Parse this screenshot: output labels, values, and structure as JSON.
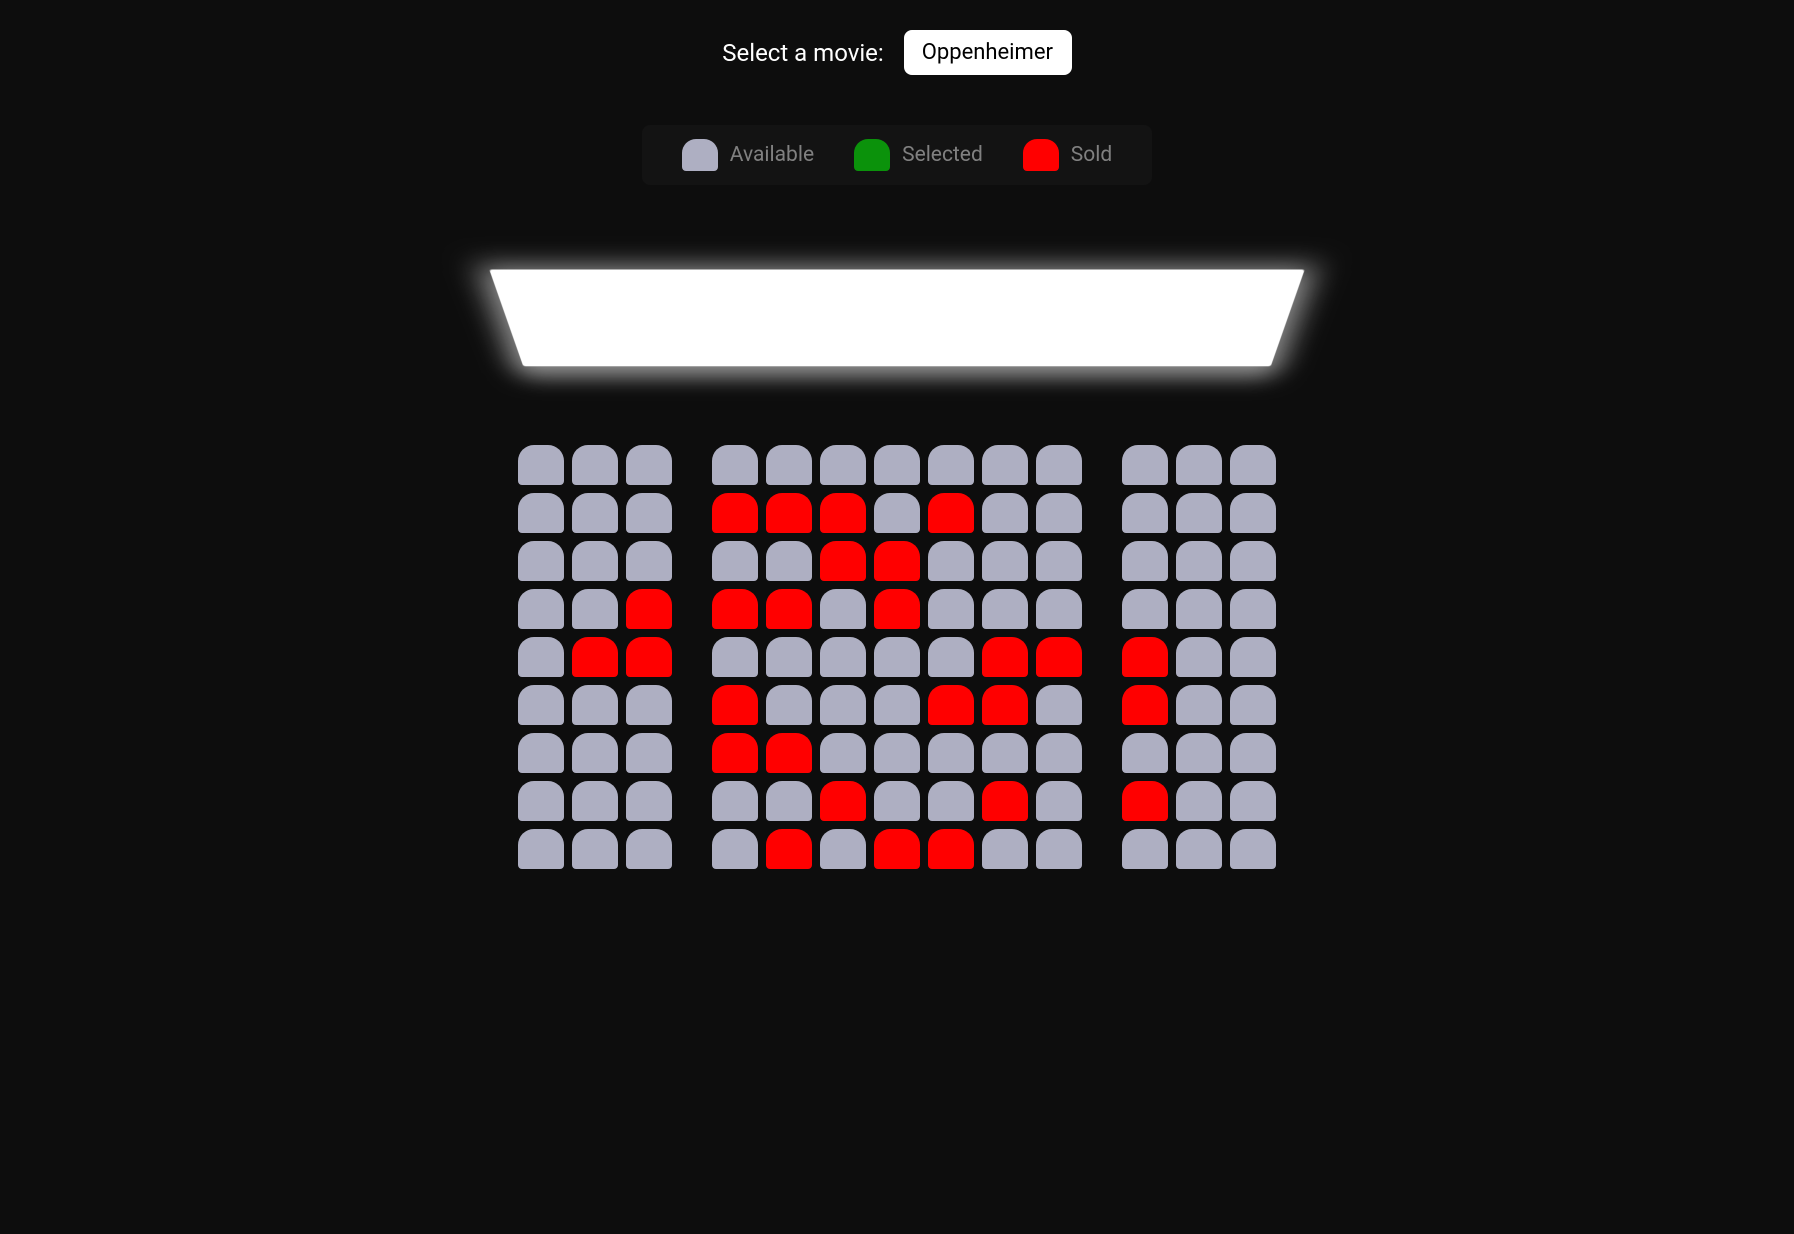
{
  "header": {
    "label": "Select a movie:",
    "selected_movie": "Oppenheimer"
  },
  "legend": {
    "available": {
      "label": "Available",
      "color": "#aeafc2"
    },
    "selected": {
      "label": "Selected",
      "color": "#0b920b"
    },
    "sold": {
      "label": "Sold",
      "color": "#ff0000"
    }
  },
  "screen": {
    "color": "#ffffff",
    "glow_color": "rgba(255,255,255,0.55)"
  },
  "colors": {
    "background": "#0d0d0d",
    "legend_bg": "#131313",
    "legend_text": "#808080",
    "text": "#ffffff"
  },
  "seating": {
    "seat_states": {
      "a": "available",
      "s": "selected",
      "o": "sold"
    },
    "aisle_after_columns": [
      3,
      10
    ],
    "rows": [
      [
        "a",
        "a",
        "a",
        "a",
        "a",
        "a",
        "a",
        "a",
        "a",
        "a",
        "a",
        "a",
        "a"
      ],
      [
        "a",
        "a",
        "a",
        "o",
        "o",
        "o",
        "a",
        "o",
        "a",
        "a",
        "a",
        "a",
        "a"
      ],
      [
        "a",
        "a",
        "a",
        "a",
        "a",
        "o",
        "o",
        "a",
        "a",
        "a",
        "a",
        "a",
        "a"
      ],
      [
        "a",
        "a",
        "o",
        "o",
        "o",
        "a",
        "o",
        "a",
        "a",
        "a",
        "a",
        "a",
        "a"
      ],
      [
        "a",
        "o",
        "o",
        "a",
        "a",
        "a",
        "a",
        "a",
        "o",
        "o",
        "o",
        "a",
        "a"
      ],
      [
        "a",
        "a",
        "a",
        "o",
        "a",
        "a",
        "a",
        "o",
        "o",
        "a",
        "o",
        "a",
        "a"
      ],
      [
        "a",
        "a",
        "a",
        "o",
        "o",
        "a",
        "a",
        "a",
        "a",
        "a",
        "a",
        "a",
        "a"
      ],
      [
        "a",
        "a",
        "a",
        "a",
        "a",
        "o",
        "a",
        "a",
        "o",
        "a",
        "o",
        "a",
        "a"
      ],
      [
        "a",
        "a",
        "a",
        "a",
        "o",
        "a",
        "o",
        "o",
        "a",
        "a",
        "a",
        "a",
        "a"
      ]
    ]
  }
}
